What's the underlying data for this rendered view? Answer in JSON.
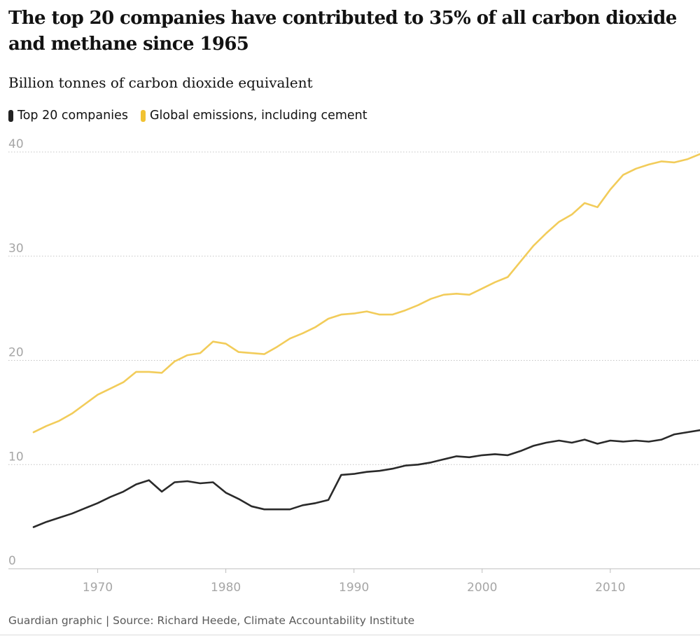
{
  "header": {
    "title": "The top 20 companies have contributed to 35% of all carbon dioxide and methane since 1965",
    "subtitle": "Billion tonnes of carbon dioxide equivalent"
  },
  "legend": {
    "items": [
      {
        "label": "Top 20 companies",
        "color": "#222222"
      },
      {
        "label": "Global emissions, including cement",
        "color": "#f1c232"
      }
    ]
  },
  "footer": {
    "source": "Guardian graphic | Source: Richard Heede, Climate Accountability Institute"
  },
  "chart_data": {
    "type": "line",
    "title": "The top 20 companies have contributed to 35% of all carbon dioxide and methane since 1965",
    "subtitle": "Billion tonnes of carbon dioxide equivalent",
    "xlabel": "",
    "ylabel": "",
    "xlim": [
      1965,
      2017
    ],
    "ylim": [
      0,
      40
    ],
    "xticks": [
      1970,
      1980,
      1990,
      2000,
      2010
    ],
    "yticks": [
      0,
      10,
      20,
      30,
      40
    ],
    "grid": "horizontal-dotted",
    "legend_position": "top-left",
    "x": [
      1965,
      1966,
      1967,
      1968,
      1969,
      1970,
      1971,
      1972,
      1973,
      1974,
      1975,
      1976,
      1977,
      1978,
      1979,
      1980,
      1981,
      1982,
      1983,
      1984,
      1985,
      1986,
      1987,
      1988,
      1989,
      1990,
      1991,
      1992,
      1993,
      1994,
      1995,
      1996,
      1997,
      1998,
      1999,
      2000,
      2001,
      2002,
      2003,
      2004,
      2005,
      2006,
      2007,
      2008,
      2009,
      2010,
      2011,
      2012,
      2013,
      2014,
      2015,
      2016,
      2017
    ],
    "series": [
      {
        "name": "Top 20 companies",
        "color": "#222222",
        "values": [
          4.0,
          4.5,
          4.9,
          5.3,
          5.8,
          6.3,
          6.9,
          7.4,
          8.1,
          8.5,
          7.4,
          8.3,
          8.4,
          8.2,
          8.3,
          7.3,
          6.7,
          6.0,
          5.7,
          5.7,
          5.7,
          6.1,
          6.3,
          6.6,
          9.0,
          9.1,
          9.3,
          9.4,
          9.6,
          9.9,
          10.0,
          10.2,
          10.5,
          10.8,
          10.7,
          10.9,
          11.0,
          10.9,
          11.3,
          11.8,
          12.1,
          12.3,
          12.1,
          12.4,
          12.0,
          12.3,
          12.2,
          12.3,
          12.2,
          12.4,
          12.9,
          13.1,
          13.3
        ]
      },
      {
        "name": "Global emissions, including cement",
        "color": "#f1c232",
        "values": [
          13.1,
          13.7,
          14.2,
          14.9,
          15.8,
          16.7,
          17.3,
          17.9,
          18.9,
          18.9,
          18.8,
          19.9,
          20.5,
          20.7,
          21.8,
          21.6,
          20.8,
          20.7,
          20.6,
          21.3,
          22.1,
          22.6,
          23.2,
          24.0,
          24.4,
          24.5,
          24.7,
          24.4,
          24.4,
          24.8,
          25.3,
          25.9,
          26.3,
          26.4,
          26.3,
          26.9,
          27.5,
          28.0,
          29.5,
          31.0,
          32.2,
          33.3,
          34.0,
          35.1,
          34.7,
          36.4,
          37.8,
          38.4,
          38.8,
          39.1,
          39.0,
          39.3,
          39.8
        ]
      }
    ]
  }
}
